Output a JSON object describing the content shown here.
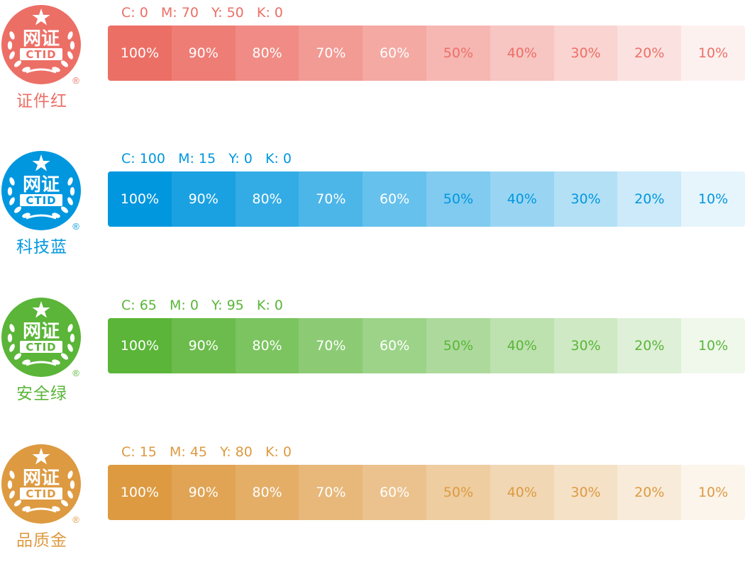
{
  "palette": [
    {
      "key": "red",
      "name": "证件红",
      "cmyk": "C: 0   M: 70   Y: 50   K: 0",
      "base_color": "#ec6f66",
      "light_text_color": "#ffffff",
      "dark_text_color": "#ec6f66",
      "swatches": [
        {
          "label": "100%",
          "tint": 1.0
        },
        {
          "label": "90%",
          "tint": 0.9
        },
        {
          "label": "80%",
          "tint": 0.8
        },
        {
          "label": "70%",
          "tint": 0.7
        },
        {
          "label": "60%",
          "tint": 0.6
        },
        {
          "label": "50%",
          "tint": 0.5
        },
        {
          "label": "40%",
          "tint": 0.4
        },
        {
          "label": "30%",
          "tint": 0.3
        },
        {
          "label": "20%",
          "tint": 0.2
        },
        {
          "label": "10%",
          "tint": 0.1
        }
      ],
      "logo": {
        "text_main": "网证",
        "text_sub": "CTID",
        "mark": "®",
        "icon": "ctid-seal-icon"
      }
    },
    {
      "key": "blue",
      "name": "科技蓝",
      "cmyk": "C: 100   M: 15   Y: 0   K: 0",
      "base_color": "#0097df",
      "light_text_color": "#ffffff",
      "dark_text_color": "#0097df",
      "swatches": [
        {
          "label": "100%",
          "tint": 1.0
        },
        {
          "label": "90%",
          "tint": 0.9
        },
        {
          "label": "80%",
          "tint": 0.8
        },
        {
          "label": "70%",
          "tint": 0.7
        },
        {
          "label": "60%",
          "tint": 0.6
        },
        {
          "label": "50%",
          "tint": 0.5
        },
        {
          "label": "40%",
          "tint": 0.4
        },
        {
          "label": "30%",
          "tint": 0.3
        },
        {
          "label": "20%",
          "tint": 0.2
        },
        {
          "label": "10%",
          "tint": 0.1
        }
      ],
      "logo": {
        "text_main": "网证",
        "text_sub": "CTID",
        "mark": "®",
        "icon": "ctid-seal-icon"
      }
    },
    {
      "key": "green",
      "name": "安全绿",
      "cmyk": "C: 65   M: 0   Y: 95   K: 0",
      "base_color": "#5ab538",
      "light_text_color": "#ffffff",
      "dark_text_color": "#5ab538",
      "swatches": [
        {
          "label": "100%",
          "tint": 1.0
        },
        {
          "label": "90%",
          "tint": 0.9
        },
        {
          "label": "80%",
          "tint": 0.8
        },
        {
          "label": "70%",
          "tint": 0.7
        },
        {
          "label": "60%",
          "tint": 0.6
        },
        {
          "label": "50%",
          "tint": 0.5
        },
        {
          "label": "40%",
          "tint": 0.4
        },
        {
          "label": "30%",
          "tint": 0.3
        },
        {
          "label": "20%",
          "tint": 0.2
        },
        {
          "label": "10%",
          "tint": 0.1
        }
      ],
      "logo": {
        "text_main": "网证",
        "text_sub": "CTID",
        "mark": "®",
        "icon": "ctid-seal-icon"
      }
    },
    {
      "key": "gold",
      "name": "品质金",
      "cmyk": "C: 15   M: 45   Y: 80   K: 0",
      "base_color": "#dd9a41",
      "light_text_color": "#ffffff",
      "dark_text_color": "#dd9a41",
      "swatches": [
        {
          "label": "100%",
          "tint": 1.0
        },
        {
          "label": "90%",
          "tint": 0.9
        },
        {
          "label": "80%",
          "tint": 0.8
        },
        {
          "label": "70%",
          "tint": 0.7
        },
        {
          "label": "60%",
          "tint": 0.6
        },
        {
          "label": "50%",
          "tint": 0.5
        },
        {
          "label": "40%",
          "tint": 0.4
        },
        {
          "label": "30%",
          "tint": 0.3
        },
        {
          "label": "20%",
          "tint": 0.2
        },
        {
          "label": "10%",
          "tint": 0.1
        }
      ],
      "logo": {
        "text_main": "网证",
        "text_sub": "CTID",
        "mark": "®",
        "icon": "ctid-seal-icon"
      }
    }
  ]
}
